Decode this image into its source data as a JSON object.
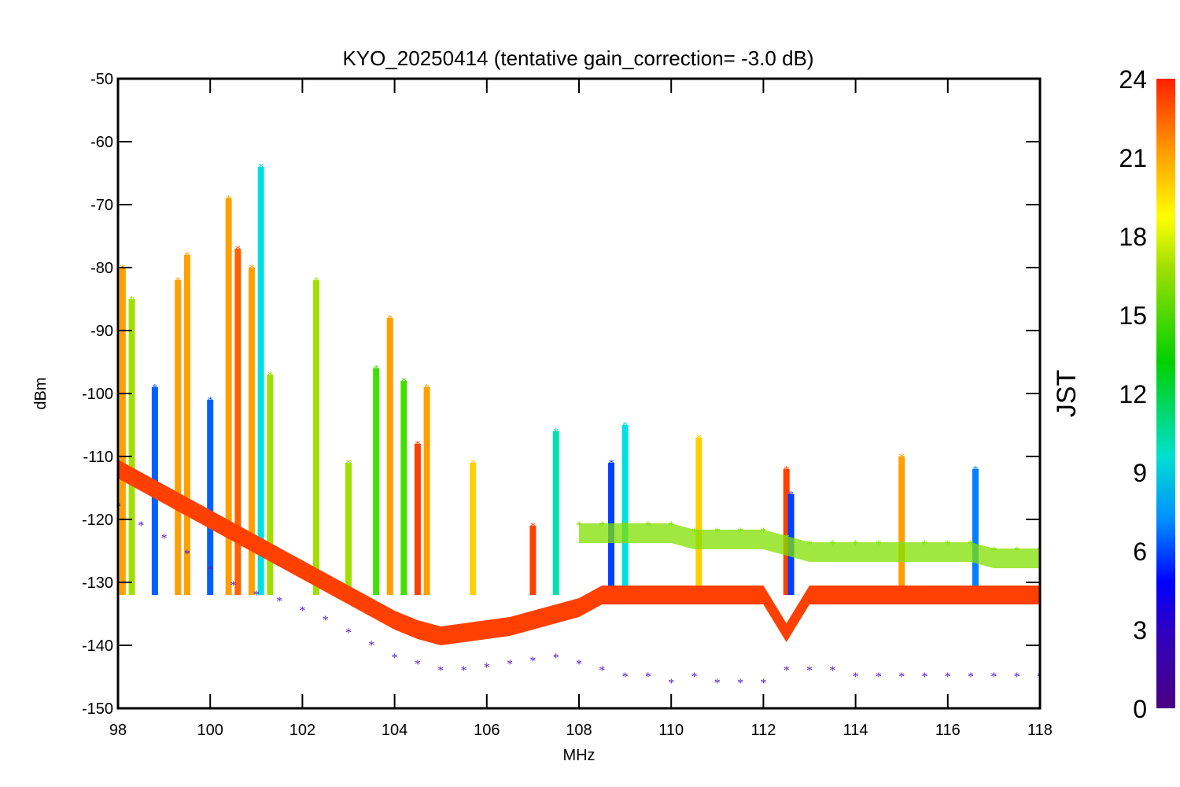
{
  "chart_data": {
    "type": "scatter",
    "title": "KYO_20250414 (tentative gain_correction= -3.0 dB)",
    "xlabel": "MHz",
    "ylabel": "dBm",
    "xlim": [
      98,
      118
    ],
    "ylim": [
      -150,
      -50
    ],
    "x_ticks": [
      98,
      100,
      102,
      104,
      106,
      108,
      110,
      112,
      114,
      116,
      118
    ],
    "y_ticks": [
      -50,
      -60,
      -70,
      -80,
      -90,
      -100,
      -110,
      -120,
      -130,
      -140,
      -150
    ],
    "grid": false,
    "marker": "asterisk",
    "colorbar": {
      "label": "JST",
      "range": [
        0,
        24
      ],
      "ticks": [
        0,
        3,
        6,
        9,
        12,
        15,
        18,
        21,
        24
      ],
      "colormap": [
        "#4b0082",
        "#0000ff",
        "#00a0ff",
        "#00e0c0",
        "#00d000",
        "#a0e000",
        "#ffff00",
        "#ffa000",
        "#ff2000"
      ]
    },
    "series": [
      {
        "color": "#ff4000",
        "x": [
          98.0,
          98.5,
          99.0,
          99.5,
          100.0,
          100.5,
          101.0,
          101.5,
          102.0,
          102.5,
          103.0,
          103.5,
          104.0,
          104.5,
          105.0,
          105.5,
          106.0,
          106.5,
          107.0,
          107.5,
          108.0,
          108.5,
          109.0,
          109.5,
          110.0,
          110.5,
          111.0,
          111.5,
          112.0,
          112.5,
          113.0,
          113.5,
          114.0,
          114.5,
          115.0,
          115.5,
          116.0,
          116.5,
          117.0,
          117.5,
          118.0
        ],
        "y": [
          -112,
          -114,
          -116,
          -118,
          -120,
          -122,
          -124,
          -126,
          -128,
          -130,
          -132,
          -134,
          -136,
          -137.5,
          -138.5,
          -138,
          -137.5,
          -137,
          -136,
          -135,
          -134,
          -132,
          -132,
          -132,
          -132,
          -132,
          -132,
          -132,
          -132,
          -138,
          -132,
          -132,
          -132,
          -132,
          -132,
          -132,
          -132,
          -132,
          -132,
          -132,
          -132
        ]
      },
      {
        "color": "#5020c0",
        "x": [
          98.0,
          98.5,
          99.0,
          99.5,
          100.0,
          100.5,
          101.0,
          101.5,
          102.0,
          102.5,
          103.0,
          103.5,
          104.0,
          104.5,
          105.0,
          105.5,
          106.0,
          106.5,
          107.0,
          107.5,
          108.0,
          108.5,
          109.0,
          109.5,
          110.0,
          110.5,
          111.0,
          111.5,
          112.0,
          112.5,
          113.0,
          113.5,
          114.0,
          114.5,
          115.0,
          115.5,
          116.0,
          116.5,
          117.0,
          117.5,
          118.0
        ],
        "y": [
          -118,
          -121,
          -123,
          -125.5,
          -128,
          -130.5,
          -132,
          -133,
          -134.5,
          -136,
          -138,
          -140,
          -142,
          -143,
          -144,
          -144,
          -143.5,
          -143,
          -142.5,
          -142,
          -143,
          -144,
          -145,
          -145,
          -146,
          -145,
          -146,
          -146,
          -146,
          -144,
          -144,
          -144,
          -145,
          -145,
          -145,
          -145,
          -145,
          -145,
          -145,
          -145,
          -145
        ]
      },
      {
        "color": "#80e000",
        "x": [
          108.0,
          108.5,
          109.0,
          109.5,
          110.0,
          110.5,
          111.0,
          111.5,
          112.0,
          112.5,
          113.0,
          113.5,
          114.0,
          114.5,
          115.0,
          115.5,
          116.0,
          116.5,
          117.0,
          117.5,
          118.0
        ],
        "y": [
          -121,
          -121,
          -121,
          -121,
          -121,
          -122,
          -122,
          -122,
          -122,
          -123,
          -124,
          -124,
          -124,
          -124,
          -124,
          -124,
          -124,
          -124,
          -125,
          -125,
          -125
        ]
      }
    ],
    "peaks": [
      {
        "x": 98.1,
        "top": -80,
        "color": "#ffa000"
      },
      {
        "x": 98.3,
        "top": -85,
        "color": "#a0e000"
      },
      {
        "x": 98.8,
        "top": -99,
        "color": "#0060ff"
      },
      {
        "x": 99.3,
        "top": -82,
        "color": "#ffa000"
      },
      {
        "x": 99.5,
        "top": -78,
        "color": "#ffa000"
      },
      {
        "x": 100.0,
        "top": -101,
        "color": "#0060ff"
      },
      {
        "x": 100.4,
        "top": -69,
        "color": "#ffa000"
      },
      {
        "x": 100.6,
        "top": -77,
        "color": "#ff6000"
      },
      {
        "x": 100.9,
        "top": -80,
        "color": "#ffa000"
      },
      {
        "x": 101.1,
        "top": -64,
        "color": "#00e0e0"
      },
      {
        "x": 101.3,
        "top": -97,
        "color": "#a0e000"
      },
      {
        "x": 102.3,
        "top": -82,
        "color": "#a0e000"
      },
      {
        "x": 103.0,
        "top": -111,
        "color": "#a0e000"
      },
      {
        "x": 103.6,
        "top": -96,
        "color": "#40e000"
      },
      {
        "x": 103.9,
        "top": -88,
        "color": "#ffa000"
      },
      {
        "x": 104.2,
        "top": -98,
        "color": "#40e000"
      },
      {
        "x": 104.5,
        "top": -108,
        "color": "#ff4000"
      },
      {
        "x": 104.7,
        "top": -99,
        "color": "#ffa000"
      },
      {
        "x": 105.7,
        "top": -111,
        "color": "#ffd000"
      },
      {
        "x": 107.0,
        "top": -121,
        "color": "#ff4000"
      },
      {
        "x": 107.5,
        "top": -106,
        "color": "#00e0b0"
      },
      {
        "x": 108.7,
        "top": -111,
        "color": "#0040ff"
      },
      {
        "x": 109.0,
        "top": -105,
        "color": "#00e0e0"
      },
      {
        "x": 110.6,
        "top": -107,
        "color": "#ffd000"
      },
      {
        "x": 112.5,
        "top": -112,
        "color": "#ff4000"
      },
      {
        "x": 112.6,
        "top": -116,
        "color": "#0040ff"
      },
      {
        "x": 115.0,
        "top": -110,
        "color": "#ffa000"
      },
      {
        "x": 116.6,
        "top": -112,
        "color": "#0080ff"
      }
    ]
  }
}
